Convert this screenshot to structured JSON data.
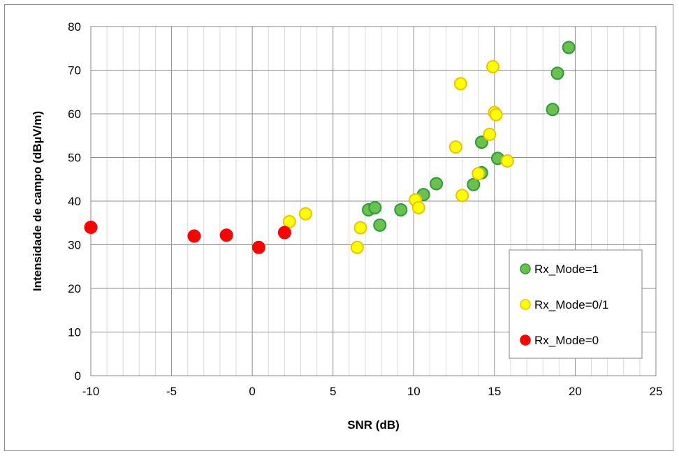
{
  "chart_data": {
    "type": "scatter",
    "title": "",
    "xlabel": "SNR (dB)",
    "ylabel": "Intensidade de campo (dBµV/m)",
    "xlim": [
      -10,
      25
    ],
    "ylim": [
      0,
      80
    ],
    "x_ticks": [
      -10,
      -5,
      0,
      5,
      10,
      15,
      20,
      25
    ],
    "y_ticks": [
      0,
      10,
      20,
      30,
      40,
      50,
      60,
      70,
      80
    ],
    "x_tick_labels": [
      "-10",
      "-5",
      "0",
      "5",
      "10",
      "15",
      "20",
      "25"
    ],
    "y_tick_labels": [
      "0",
      "10",
      "20",
      "30",
      "40",
      "50",
      "60",
      "70",
      "80"
    ],
    "grid": true,
    "legend_position": "bottom-right",
    "series": [
      {
        "name": "Rx_Mode=1",
        "color": "#6ac14e",
        "edge_color": "#2e9a3c",
        "points": [
          [
            7.2,
            38.0
          ],
          [
            7.6,
            38.5
          ],
          [
            7.9,
            34.5
          ],
          [
            9.2,
            38.0
          ],
          [
            10.6,
            41.5
          ],
          [
            11.4,
            44.0
          ],
          [
            13.7,
            43.8
          ],
          [
            14.2,
            46.5
          ],
          [
            14.2,
            53.5
          ],
          [
            15.2,
            49.8
          ],
          [
            18.6,
            61.0
          ],
          [
            18.9,
            69.3
          ],
          [
            19.6,
            75.2
          ]
        ]
      },
      {
        "name": "Rx_Mode=0/1",
        "color": "#ffff00",
        "edge_color": "#f0c000",
        "points": [
          [
            2.3,
            35.3
          ],
          [
            3.3,
            37.1
          ],
          [
            6.5,
            29.4
          ],
          [
            6.7,
            33.9
          ],
          [
            10.1,
            40.3
          ],
          [
            10.3,
            38.5
          ],
          [
            12.6,
            52.4
          ],
          [
            12.9,
            66.9
          ],
          [
            13.0,
            41.3
          ],
          [
            14.0,
            46.3
          ],
          [
            14.7,
            55.3
          ],
          [
            14.9,
            70.8
          ],
          [
            15.0,
            60.3
          ],
          [
            15.1,
            59.8
          ],
          [
            15.8,
            49.2
          ]
        ]
      },
      {
        "name": "Rx_Mode=0",
        "color": "#ff0000",
        "edge_color": "#ff0000",
        "points": [
          [
            -10.0,
            34.0
          ],
          [
            -3.6,
            32.0
          ],
          [
            -1.6,
            32.2
          ],
          [
            0.4,
            29.4
          ],
          [
            2.0,
            32.8
          ]
        ]
      }
    ]
  }
}
